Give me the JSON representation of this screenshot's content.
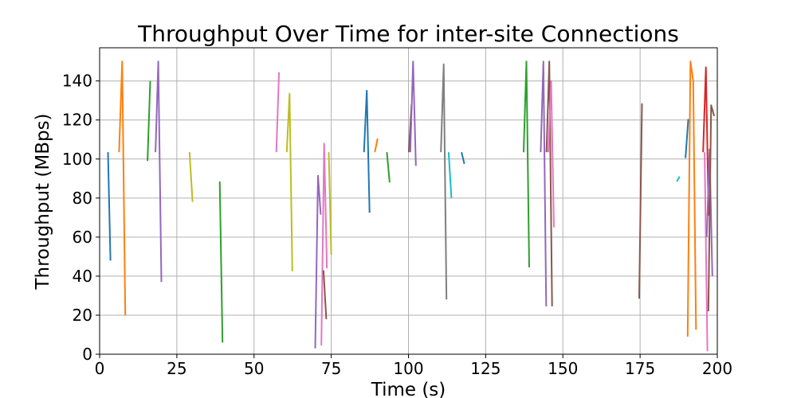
{
  "chart_data": {
    "type": "line",
    "title": "Throughput Over Time for inter-site Connections",
    "xlabel": "Time (s)",
    "ylabel": "Throughput (MBps)",
    "xlim": [
      0,
      200
    ],
    "ylim": [
      0,
      157
    ],
    "xticks": [
      0,
      25,
      50,
      75,
      100,
      125,
      150,
      175,
      200
    ],
    "yticks": [
      0,
      20,
      40,
      60,
      80,
      100,
      120,
      140
    ],
    "grid": true,
    "legend": "none",
    "series": [
      {
        "color": "#1f77b4",
        "points": [
          [
            2.7,
            103.5
          ],
          [
            3.5,
            48.0
          ]
        ]
      },
      {
        "color": "#ff7f0e",
        "points": [
          [
            6.3,
            103.5
          ],
          [
            7.3,
            150.0
          ],
          [
            8.3,
            20.0
          ]
        ]
      },
      {
        "color": "#2ca02c",
        "points": [
          [
            15.5,
            99.0
          ],
          [
            16.4,
            140.0
          ]
        ]
      },
      {
        "color": "#9467bd",
        "points": [
          [
            18.1,
            103.5
          ],
          [
            19.0,
            150.0
          ],
          [
            20.0,
            37.0
          ]
        ]
      },
      {
        "color": "#bcbd22",
        "points": [
          [
            29.1,
            103.5
          ],
          [
            30.1,
            78.0
          ]
        ]
      },
      {
        "color": "#2ca02c",
        "points": [
          [
            38.9,
            88.5
          ],
          [
            39.8,
            6.0
          ]
        ]
      },
      {
        "color": "#e377c2",
        "points": [
          [
            57.2,
            103.5
          ],
          [
            58.1,
            144.5
          ]
        ]
      },
      {
        "color": "#bcbd22",
        "points": [
          [
            60.6,
            103.5
          ],
          [
            61.5,
            133.5
          ],
          [
            62.4,
            42.5
          ]
        ]
      },
      {
        "color": "#9467bd",
        "points": [
          [
            69.8,
            3.0
          ],
          [
            70.7,
            91.5
          ],
          [
            71.6,
            71.5
          ]
        ]
      },
      {
        "color": "#e377c2",
        "points": [
          [
            71.8,
            4.5
          ],
          [
            72.7,
            108.0
          ],
          [
            73.6,
            44.0
          ]
        ]
      },
      {
        "color": "#8c564b",
        "points": [
          [
            72.5,
            43.0
          ],
          [
            73.4,
            18.0
          ]
        ]
      },
      {
        "color": "#bcbd22",
        "points": [
          [
            74.2,
            103.5
          ],
          [
            75.0,
            51.0
          ]
        ]
      },
      {
        "color": "#1f77b4",
        "points": [
          [
            85.6,
            103.5
          ],
          [
            86.5,
            135.0
          ],
          [
            87.4,
            72.5
          ]
        ]
      },
      {
        "color": "#ff7f0e",
        "points": [
          [
            89.1,
            103.5
          ],
          [
            90.0,
            110.5
          ]
        ]
      },
      {
        "color": "#2ca02c",
        "points": [
          [
            93.0,
            103.5
          ],
          [
            93.9,
            88.0
          ]
        ]
      },
      {
        "color": "#8c564b",
        "points": [
          [
            100.1,
            103.5
          ],
          [
            101.0,
            128.0
          ]
        ]
      },
      {
        "color": "#9467bd",
        "points": [
          [
            100.6,
            103.5
          ],
          [
            101.5,
            150.0
          ],
          [
            102.4,
            96.5
          ]
        ]
      },
      {
        "color": "#7f7f7f",
        "points": [
          [
            110.5,
            103.5
          ],
          [
            111.4,
            148.5
          ],
          [
            112.3,
            28.0
          ]
        ]
      },
      {
        "color": "#17becf",
        "points": [
          [
            113.0,
            103.5
          ],
          [
            113.9,
            80.0
          ]
        ]
      },
      {
        "color": "#1f77b4",
        "points": [
          [
            117.2,
            103.5
          ],
          [
            118.1,
            97.5
          ]
        ]
      },
      {
        "color": "#2ca02c",
        "points": [
          [
            137.3,
            103.5
          ],
          [
            138.2,
            150.0
          ],
          [
            139.1,
            44.5
          ]
        ]
      },
      {
        "color": "#9467bd",
        "points": [
          [
            142.8,
            103.5
          ],
          [
            143.7,
            150.0
          ],
          [
            144.6,
            24.5
          ]
        ]
      },
      {
        "color": "#8c564b",
        "points": [
          [
            144.7,
            103.5
          ],
          [
            145.6,
            150.0
          ],
          [
            146.5,
            24.5
          ]
        ]
      },
      {
        "color": "#e377c2",
        "points": [
          [
            145.3,
            103.5
          ],
          [
            146.2,
            140.0
          ],
          [
            147.1,
            65.0
          ]
        ]
      },
      {
        "color": "#8c564b",
        "points": [
          [
            174.7,
            28.5
          ],
          [
            175.6,
            128.5
          ]
        ]
      },
      {
        "color": "#17becf",
        "points": [
          [
            186.9,
            88.5
          ],
          [
            187.8,
            91.0
          ]
        ]
      },
      {
        "color": "#1f77b4",
        "points": [
          [
            189.7,
            100.5
          ],
          [
            190.6,
            120.5
          ]
        ]
      },
      {
        "color": "#ff7f0e",
        "points": [
          [
            190.4,
            9.0
          ],
          [
            191.3,
            150.0
          ],
          [
            192.2,
            140.0
          ],
          [
            193.1,
            12.5
          ]
        ]
      },
      {
        "color": "#d62728",
        "points": [
          [
            195.4,
            103.5
          ],
          [
            196.3,
            147.0
          ],
          [
            197.2,
            71.0
          ]
        ]
      },
      {
        "color": "#e377c2",
        "points": [
          [
            195.9,
            103.5
          ],
          [
            196.8,
            1.5
          ]
        ]
      },
      {
        "color": "#9467bd",
        "points": [
          [
            196.6,
            60.0
          ],
          [
            197.5,
            105.0
          ],
          [
            198.4,
            40.0
          ]
        ]
      },
      {
        "color": "#8c564b",
        "points": [
          [
            197.1,
            22.0
          ],
          [
            198.0,
            127.5
          ],
          [
            199.0,
            122.0
          ]
        ]
      }
    ]
  }
}
